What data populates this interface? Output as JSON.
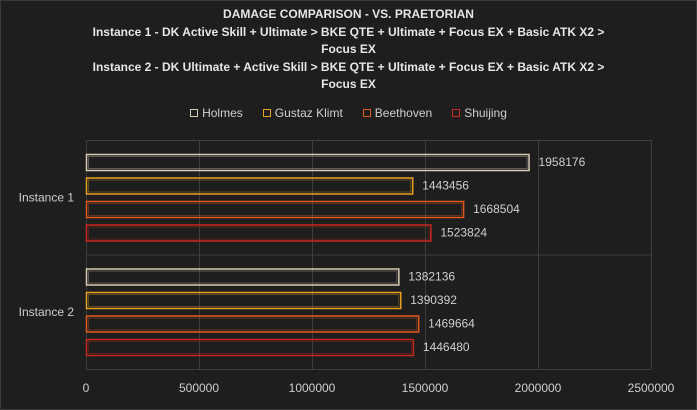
{
  "chart_data": {
    "type": "bar",
    "orientation": "horizontal",
    "title": "DAMAGE COMPARISON - VS. PRAETORIAN",
    "subtitle_lines": [
      "Instance 1 -  DK Active Skill + Ultimate > BKE QTE + Ultimate + Focus EX + Basic ATK X2 >",
      "Focus EX",
      "Instance 2 - DK Ultimate + Active Skill > BKE QTE + Ultimate + Focus EX + Basic ATK X2 >",
      "Focus EX"
    ],
    "categories": [
      "Instance 1",
      "Instance 2"
    ],
    "series": [
      {
        "name": "Holmes",
        "color": "#d8cbb4",
        "values": [
          1958176,
          1382136
        ]
      },
      {
        "name": "Gustaz Klimt",
        "color": "#e8a020",
        "values": [
          1443456,
          1390392
        ]
      },
      {
        "name": "Beethoven",
        "color": "#e05a1c",
        "values": [
          1668504,
          1469664
        ]
      },
      {
        "name": "Shuijing",
        "color": "#c8281e",
        "values": [
          1523824,
          1446480
        ]
      }
    ],
    "xlim": [
      0,
      2500000
    ],
    "xticks": [
      0,
      500000,
      1000000,
      1500000,
      2000000,
      2500000
    ],
    "xtick_labels": [
      "0",
      "500000",
      "1000000",
      "1500000",
      "2000000",
      "2500000"
    ],
    "grid": true,
    "legend": "top"
  }
}
